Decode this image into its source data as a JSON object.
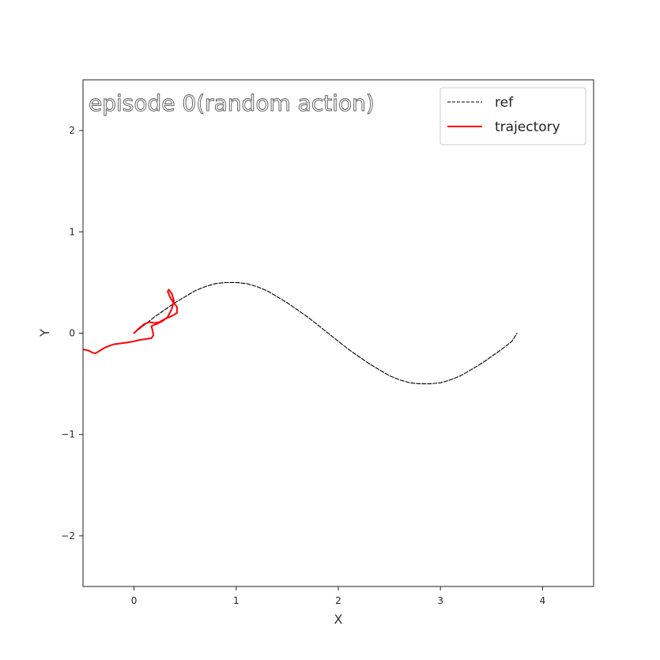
{
  "chart_data": {
    "type": "line",
    "title": "episode 0(random action)",
    "xlabel": "X",
    "ylabel": "Y",
    "xlim": [
      -0.5,
      4.5
    ],
    "ylim": [
      -2.5,
      2.5
    ],
    "xticks": [
      0,
      1,
      2,
      3,
      4
    ],
    "yticks": [
      -2,
      -1,
      0,
      1,
      2
    ],
    "grid": false,
    "legend_position": "top-right",
    "series": [
      {
        "name": "ref",
        "style": "dashed",
        "color": "#000000",
        "x": [
          0.0,
          0.1,
          0.2,
          0.3,
          0.4,
          0.5,
          0.6,
          0.7,
          0.8,
          0.9,
          1.0,
          1.1,
          1.2,
          1.3,
          1.4,
          1.5,
          1.6,
          1.7,
          1.8,
          1.9,
          2.0,
          2.1,
          2.2,
          2.3,
          2.4,
          2.5,
          2.6,
          2.7,
          2.8,
          2.9,
          3.0,
          3.1,
          3.2,
          3.3,
          3.4,
          3.5,
          3.6,
          3.7,
          3.75
        ],
        "y": [
          0.0,
          0.08,
          0.16,
          0.23,
          0.3,
          0.36,
          0.42,
          0.46,
          0.49,
          0.5,
          0.5,
          0.49,
          0.46,
          0.42,
          0.36,
          0.3,
          0.23,
          0.16,
          0.08,
          0.0,
          -0.08,
          -0.16,
          -0.23,
          -0.3,
          -0.36,
          -0.42,
          -0.46,
          -0.49,
          -0.5,
          -0.5,
          -0.49,
          -0.46,
          -0.42,
          -0.36,
          -0.3,
          -0.23,
          -0.16,
          -0.08,
          0.0
        ]
      },
      {
        "name": "trajectory",
        "style": "solid",
        "color": "#ff0000",
        "x": [
          0.0,
          0.05,
          0.1,
          0.15,
          0.2,
          0.25,
          0.3,
          0.35,
          0.39,
          0.42,
          0.42,
          0.38,
          0.35,
          0.33,
          0.34,
          0.37,
          0.39,
          0.37,
          0.33,
          0.28,
          0.22,
          0.17,
          0.18,
          0.19,
          0.17,
          0.1,
          0.04,
          0.0,
          -0.05,
          -0.12,
          -0.2,
          -0.28,
          -0.33,
          -0.38,
          -0.41,
          -0.45,
          -0.5
        ],
        "y": [
          0.0,
          0.05,
          0.09,
          0.11,
          0.1,
          0.11,
          0.14,
          0.16,
          0.18,
          0.2,
          0.26,
          0.31,
          0.36,
          0.41,
          0.43,
          0.39,
          0.32,
          0.24,
          0.16,
          0.12,
          0.09,
          0.07,
          0.03,
          -0.02,
          -0.05,
          -0.06,
          -0.07,
          -0.08,
          -0.09,
          -0.1,
          -0.11,
          -0.14,
          -0.17,
          -0.2,
          -0.19,
          -0.17,
          -0.16
        ]
      }
    ]
  }
}
